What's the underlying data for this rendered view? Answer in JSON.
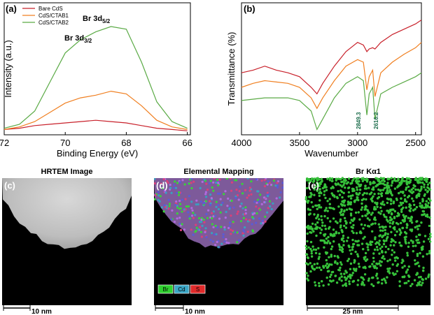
{
  "chart_data": [
    {
      "type": "line",
      "label": "(a)",
      "xlabel": "Binding Energy (eV)",
      "ylabel": "Intensity (a.u.)",
      "x": [
        72,
        71.5,
        71,
        70.5,
        70,
        69.5,
        69,
        68.5,
        68,
        67.5,
        67,
        66.5,
        66
      ],
      "series": [
        {
          "name": "Bare CdS",
          "color": "#c8202a",
          "values": [
            4,
            5,
            7,
            8,
            9,
            10,
            11,
            10,
            9,
            7,
            5,
            4,
            3
          ]
        },
        {
          "name": "CdS/CTAB1",
          "color": "#f07f20",
          "values": [
            4,
            6,
            10,
            17,
            24,
            28,
            30,
            33,
            31,
            22,
            11,
            6,
            4
          ]
        },
        {
          "name": "CdS/CTAB2",
          "color": "#5aaa45",
          "values": [
            5,
            8,
            18,
            40,
            62,
            72,
            78,
            82,
            80,
            55,
            25,
            10,
            5
          ]
        }
      ],
      "xlim": [
        72,
        65.9
      ],
      "xticks": [
        72,
        70,
        68,
        66
      ],
      "ylim": [
        0,
        100
      ],
      "legend": "upper left",
      "annotations": [
        {
          "text": "Br 3d",
          "sub": "3/2"
        },
        {
          "text": "Br 3d",
          "sub": "5/2"
        }
      ]
    },
    {
      "type": "line",
      "label": "(b)",
      "xlabel": "Wavenumber",
      "ylabel": "Transmittance (%)",
      "x": [
        4000,
        3900,
        3800,
        3700,
        3600,
        3500,
        3400,
        3350,
        3300,
        3200,
        3100,
        3000,
        2950,
        2920,
        2900,
        2870,
        2850,
        2800,
        2700,
        2600,
        2500,
        2450
      ],
      "series": [
        {
          "color": "#c8202a",
          "values": [
            47,
            49,
            52,
            49,
            47,
            44,
            36,
            31,
            39,
            52,
            63,
            70,
            68,
            63,
            65,
            66,
            65,
            70,
            76,
            80,
            84,
            87
          ]
        },
        {
          "color": "#f07f20",
          "values": [
            36,
            39,
            41,
            40,
            39,
            36,
            28,
            20,
            28,
            41,
            52,
            57,
            55,
            34,
            44,
            49,
            29,
            47,
            55,
            61,
            66,
            70
          ]
        },
        {
          "color": "#5aaa45",
          "values": [
            26,
            27,
            28,
            28,
            28,
            26,
            18,
            4,
            12,
            28,
            39,
            44,
            41,
            15,
            31,
            36,
            12,
            31,
            36,
            40,
            44,
            47
          ]
        }
      ],
      "xlim": [
        4000,
        2450
      ],
      "xticks": [
        4000,
        3500,
        3000,
        2500
      ],
      "ylim": [
        0,
        100
      ],
      "annotations": [
        "2849.3",
        "2616.2"
      ]
    }
  ],
  "images": [
    {
      "label": "(c)",
      "title": "HRTEM Image",
      "scale_bar": "10 nm"
    },
    {
      "label": "(d)",
      "title": "Elemental Mapping",
      "scale_bar": "10 nm",
      "legend": [
        "Br",
        "Cd",
        "S"
      ]
    },
    {
      "label": "(e)",
      "title": "Br Kα1",
      "scale_bar": "25 nm"
    }
  ]
}
